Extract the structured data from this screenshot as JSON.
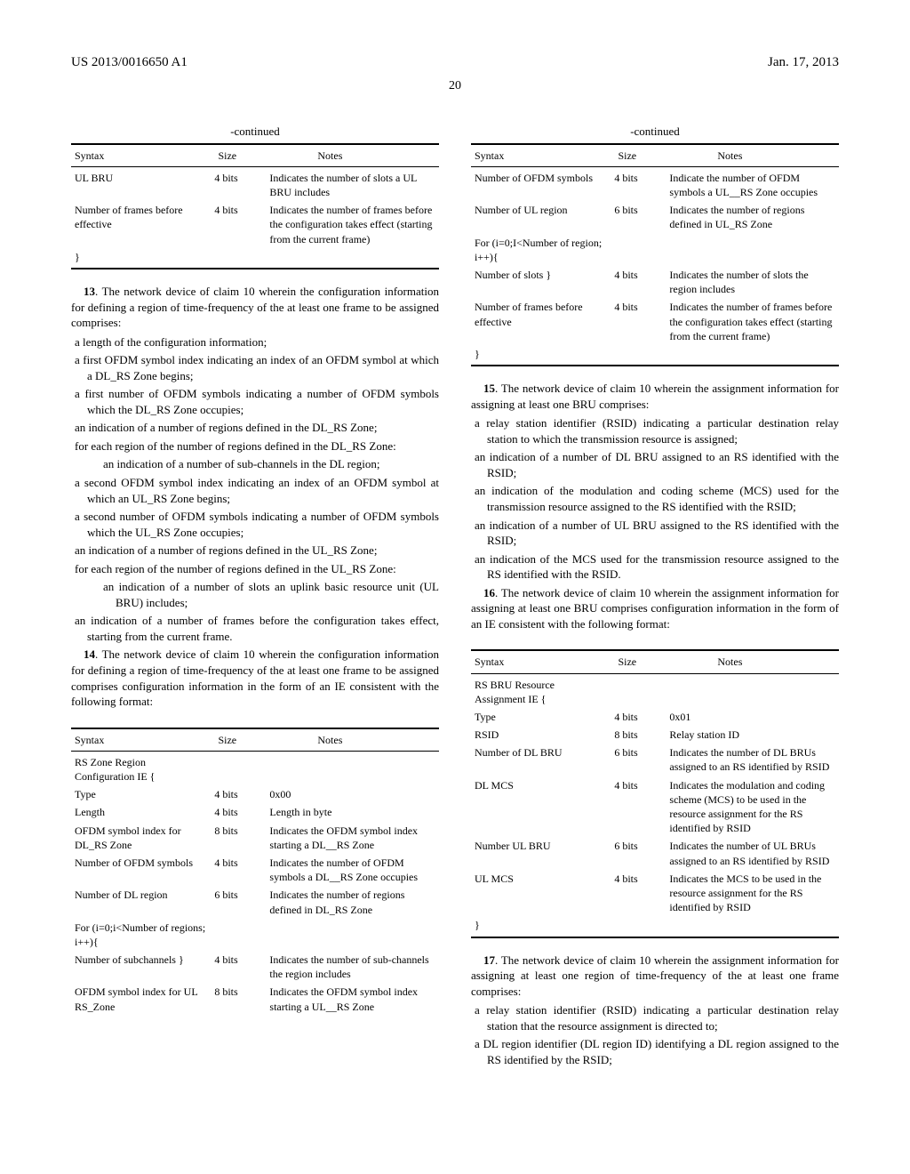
{
  "header": {
    "left": "US 2013/0016650 A1",
    "right": "Jan. 17, 2013",
    "page": "20"
  },
  "left_col": {
    "table1": {
      "title": "-continued",
      "headers": [
        "Syntax",
        "Size",
        "Notes"
      ],
      "rows": [
        [
          "UL BRU",
          "4 bits",
          "Indicates the number of slots a UL BRU includes"
        ],
        [
          "Number of frames before effective",
          "4 bits",
          "Indicates the number of frames before the configuration takes effect (starting from the current frame)"
        ],
        [
          "}",
          "",
          ""
        ]
      ]
    },
    "claim13": {
      "lead": "13. The network device of claim 10 wherein the configuration information for defining a region of time-frequency of the at least one frame to be assigned comprises:",
      "items": [
        "a length of the configuration information;",
        "a first OFDM symbol index indicating an index of an OFDM symbol at which a DL_RS Zone begins;",
        "a first number of OFDM symbols indicating a number of OFDM symbols which the DL_RS Zone occupies;",
        "an indication of a number of regions defined in the DL_RS Zone;",
        "for each region of the number of regions defined in the DL_RS Zone:"
      ],
      "sub1": "an indication of a number of sub-channels in the DL region;",
      "items2": [
        "a second OFDM symbol index indicating an index of an OFDM symbol at which an UL_RS Zone begins;",
        "a second number of OFDM symbols indicating a number of OFDM symbols which the UL_RS Zone occupies;",
        "an indication of a number of regions defined in the UL_RS Zone;",
        "for each region of the number of regions defined in the UL_RS Zone:"
      ],
      "sub2": "an indication of a number of slots an uplink basic resource unit (UL BRU) includes;",
      "items3": [
        "an indication of a number of frames before the configuration takes effect, starting from the current frame."
      ]
    },
    "claim14": {
      "lead": "14. The network device of claim 10 wherein the configuration information for defining a region of time-frequency of the at least one frame to be assigned comprises configuration information in the form of an IE consistent with the following format:"
    },
    "table2": {
      "headers": [
        "Syntax",
        "Size",
        "Notes"
      ],
      "rows": [
        [
          "RS Zone Region Configuration IE {",
          "",
          ""
        ],
        [
          "Type",
          "4 bits",
          "0x00"
        ],
        [
          "Length",
          "4 bits",
          "Length in byte"
        ],
        [
          "OFDM symbol index for DL_RS Zone",
          "8 bits",
          "Indicates the OFDM symbol index starting a DL__RS Zone"
        ],
        [
          "Number of OFDM symbols",
          "4 bits",
          "Indicates the number of OFDM symbols a DL__RS Zone occupies"
        ],
        [
          "Number of DL region",
          "6 bits",
          "Indicates the number of regions defined in DL_RS Zone"
        ],
        [
          "For (i=0;i<Number of regions; i++){",
          "",
          ""
        ],
        [
          "Number of subchannels }",
          "4 bits",
          "Indicates the number of sub-channels the region includes"
        ],
        [
          "OFDM symbol index for UL RS_Zone",
          "8 bits",
          "Indicates the OFDM symbol index starting a UL__RS Zone"
        ]
      ]
    }
  },
  "right_col": {
    "table1": {
      "title": "-continued",
      "headers": [
        "Syntax",
        "Size",
        "Notes"
      ],
      "rows": [
        [
          "Number of OFDM symbols",
          "4 bits",
          "Indicate the number of OFDM symbols a UL__RS Zone occupies"
        ],
        [
          "Number of UL region",
          "6 bits",
          "Indicates the number of regions defined in UL_RS Zone"
        ],
        [
          "For (i=0;I<Number of region; i++){",
          "",
          ""
        ],
        [
          "Number of slots }",
          "4 bits",
          "Indicates the number of slots the region includes"
        ],
        [
          "Number of frames before effective",
          "4 bits",
          "Indicates the number of frames before the configuration takes effect (starting from the current frame)"
        ],
        [
          "}",
          "",
          ""
        ]
      ]
    },
    "claim15": {
      "lead": "15. The network device of claim 10 wherein the assignment information for assigning at least one BRU comprises:",
      "items": [
        "a relay station identifier (RSID) indicating a particular destination relay station to which the transmission resource is assigned;",
        "an indication of a number of DL BRU assigned to an RS identified with the RSID;",
        "an indication of the modulation and coding scheme (MCS) used for the transmission resource assigned to the RS identified with the RSID;",
        "an indication of a number of UL BRU assigned to the RS identified with the RSID;",
        "an indication of the MCS used for the transmission resource assigned to the RS identified with the RSID."
      ]
    },
    "claim16": {
      "lead": "16. The network device of claim 10 wherein the assignment information for assigning at least one BRU comprises configuration information in the form of an IE consistent with the following format:"
    },
    "table2": {
      "headers": [
        "Syntax",
        "Size",
        "Notes"
      ],
      "rows": [
        [
          "RS BRU Resource Assignment IE {",
          "",
          ""
        ],
        [
          "Type",
          "4 bits",
          "0x01"
        ],
        [
          "RSID",
          "8 bits",
          "Relay station ID"
        ],
        [
          "Number of DL BRU",
          "6 bits",
          "Indicates the number of DL BRUs assigned to an RS identified by RSID"
        ],
        [
          "DL MCS",
          "4 bits",
          "Indicates the modulation and coding scheme (MCS) to be used in the resource assignment for the RS identified by RSID"
        ],
        [
          "Number UL BRU",
          "6 bits",
          "Indicates the number of UL BRUs assigned to an RS identified by RSID"
        ],
        [
          "UL MCS",
          "4 bits",
          "Indicates the MCS to be used in the resource assignment for the RS identified by RSID"
        ],
        [
          "}",
          "",
          ""
        ]
      ]
    },
    "claim17": {
      "lead": "17. The network device of claim 10 wherein the assignment information for assigning at least one region of time-frequency of the at least one frame comprises:",
      "items": [
        "a relay station identifier (RSID) indicating a particular destination relay station that the resource assignment is directed to;",
        "a DL region identifier (DL region ID) identifying a DL region assigned to the RS identified by the RSID;"
      ]
    }
  }
}
